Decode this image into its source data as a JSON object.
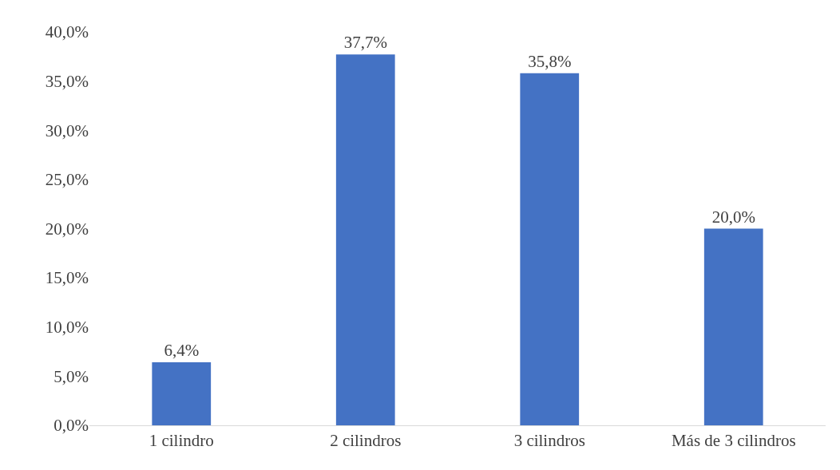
{
  "chart_data": {
    "type": "bar",
    "categories": [
      "1 cilindro",
      "2 cilindros",
      "3 cilindros",
      "Más de 3 cilindros"
    ],
    "values": [
      6.4,
      37.7,
      35.8,
      20.0
    ],
    "color": "#4472c4",
    "value_labels": [
      "6,4%",
      "37,7%",
      "35,8%",
      "20,0%"
    ],
    "ylim": [
      0,
      40
    ],
    "yticks": [
      {
        "value": 0,
        "label": "0,0%"
      },
      {
        "value": 5,
        "label": "5,0%"
      },
      {
        "value": 10,
        "label": "10,0%"
      },
      {
        "value": 15,
        "label": "15,0%"
      },
      {
        "value": 20,
        "label": "20,0%"
      },
      {
        "value": 25,
        "label": "25,0%"
      },
      {
        "value": 30,
        "label": "30,0%"
      },
      {
        "value": 35,
        "label": "35,0%"
      },
      {
        "value": 40,
        "label": "40,0%"
      }
    ],
    "grid": false,
    "legend": false
  }
}
